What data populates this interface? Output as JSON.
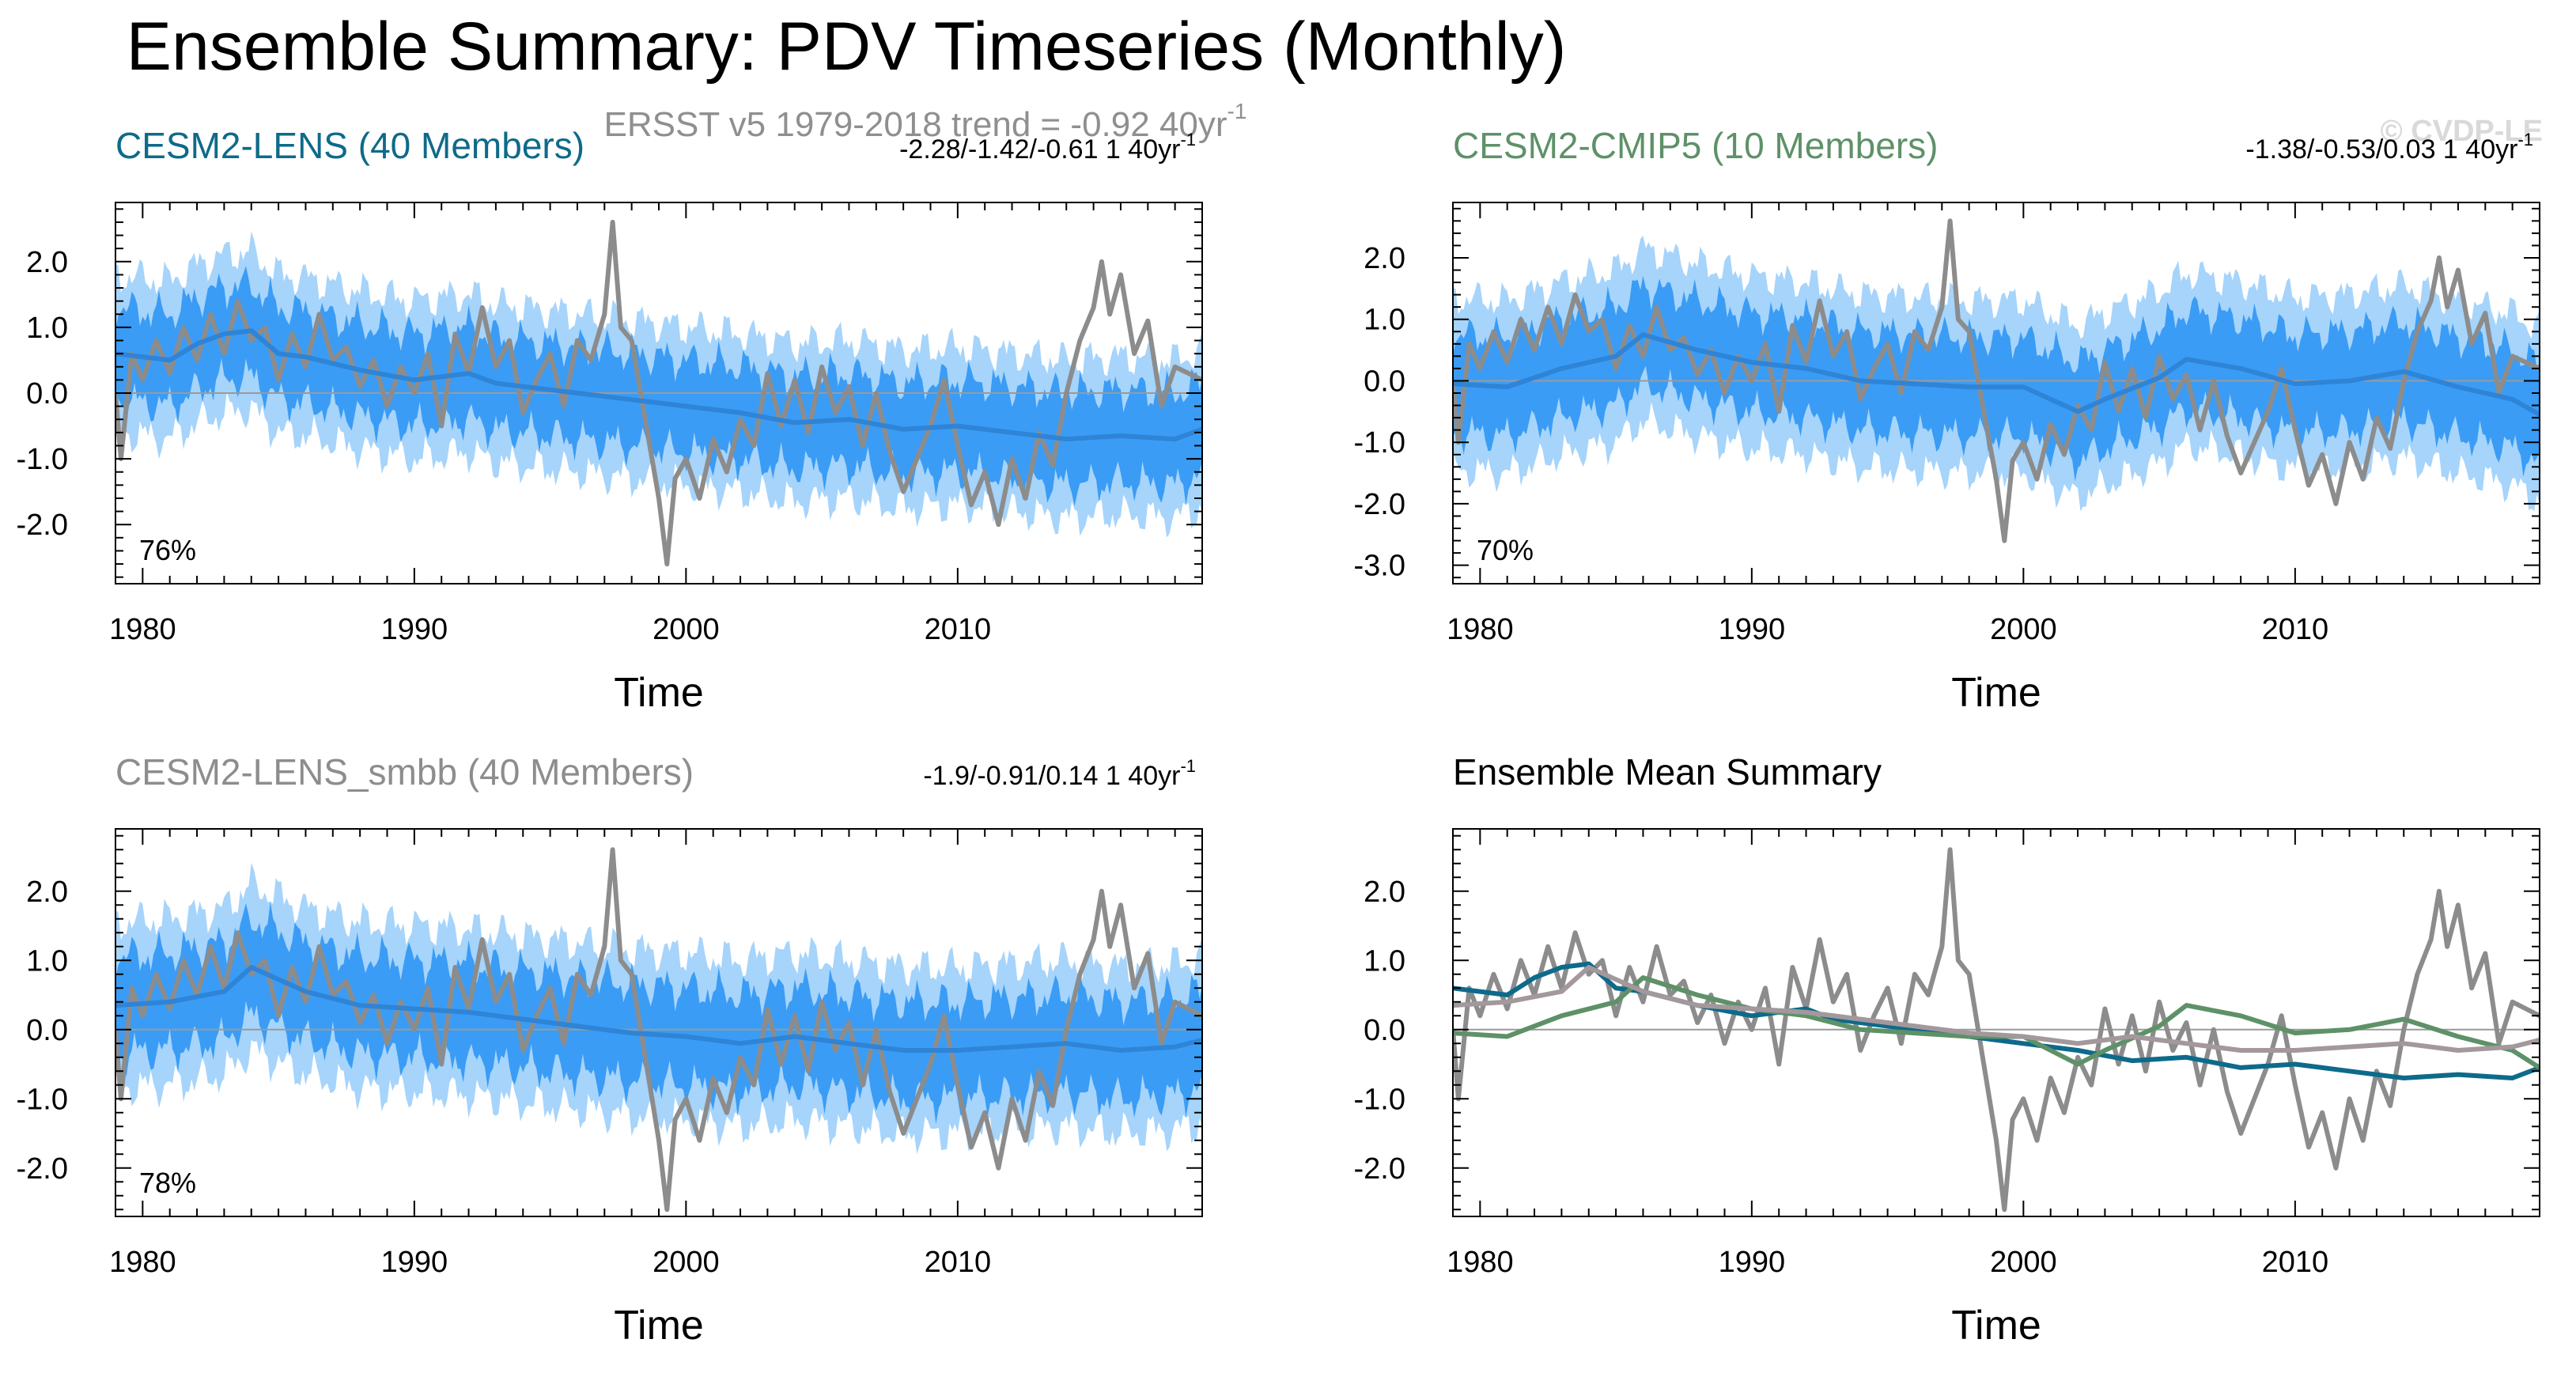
{
  "figure": {
    "title": "Ensemble Summary: PDV Timeseries (Monthly)",
    "subtitle_text": "ERSST v5 1979-2018 trend = -0.92 40yr",
    "subtitle_sup": "-1",
    "watermark": "© CVDP-LE",
    "colors": {
      "obs": "#8c8c8c",
      "inner_band": "#3a9cf5",
      "outer_band": "#a6d4fb",
      "ens_mean": "#2e84d6",
      "zero_line": "#9a9a9a",
      "lens": "#0e6a8a",
      "cmip5": "#5e9168",
      "smbb": "#a3989c"
    }
  },
  "chart_data": [
    {
      "id": "lens",
      "type": "line",
      "title": "CESM2-LENS (40 Members)",
      "title_color": "#0e6a8a",
      "trend_text": "-2.28/-1.42/-0.61 1 40yr",
      "trend_sup": "-1",
      "annotation": "76%",
      "xlabel": "Time",
      "ylabel": "",
      "xlim": [
        1979,
        2019
      ],
      "ylim": [
        -2.9,
        2.9
      ],
      "xticks": [
        1980,
        1990,
        2000,
        2010
      ],
      "xtick_labels": [
        "1980",
        "1990",
        "2000",
        "2010"
      ],
      "yticks": [
        2.0,
        1.0,
        0.0,
        -1.0,
        -2.0
      ],
      "ytick_labels": [
        "2.0",
        "1.0",
        "0.0",
        "-1.0",
        "-2.0"
      ],
      "ens_mean": {
        "x": [
          1979,
          1981,
          1982,
          1983,
          1984,
          1985,
          1986,
          1987,
          1988,
          1990,
          1992,
          1993,
          1995,
          1996,
          1998,
          2000,
          2002,
          2004,
          2006,
          2008,
          2010,
          2012,
          2014,
          2016,
          2018,
          2019
        ],
        "y": [
          0.6,
          0.5,
          0.75,
          0.9,
          0.95,
          0.6,
          0.55,
          0.45,
          0.35,
          0.2,
          0.3,
          0.15,
          0.05,
          0.0,
          -0.1,
          -0.2,
          -0.3,
          -0.45,
          -0.4,
          -0.55,
          -0.5,
          -0.6,
          -0.7,
          -0.65,
          -0.7,
          -0.55
        ]
      },
      "inner_spread": 0.7,
      "outer_spread": 1.2
    },
    {
      "id": "cmip5",
      "type": "line",
      "title": "CESM2-CMIP5 (10 Members)",
      "title_color": "#5e9168",
      "trend_text": "-1.38/-0.53/0.03 1 40yr",
      "trend_sup": "-1",
      "annotation": "70%",
      "xlabel": "Time",
      "ylabel": "",
      "xlim": [
        1979,
        2019
      ],
      "ylim": [
        -3.3,
        2.9
      ],
      "xticks": [
        1980,
        1990,
        2000,
        2010
      ],
      "xtick_labels": [
        "1980",
        "1990",
        "2000",
        "2010"
      ],
      "yticks": [
        2.0,
        1.0,
        0.0,
        -1.0,
        -2.0,
        -3.0
      ],
      "ytick_labels": [
        "2.0",
        "1.0",
        "0.0",
        "-1.0",
        "-2.0",
        "-3.0"
      ],
      "ens_mean": {
        "x": [
          1979,
          1981,
          1983,
          1985,
          1986,
          1988,
          1990,
          1992,
          1994,
          1996,
          1998,
          2000,
          2002,
          2003,
          2005,
          2006,
          2008,
          2010,
          2012,
          2014,
          2016,
          2018,
          2019
        ],
        "y": [
          -0.05,
          -0.1,
          0.2,
          0.4,
          0.75,
          0.5,
          0.3,
          0.2,
          0.0,
          -0.05,
          -0.1,
          -0.1,
          -0.5,
          -0.3,
          0.05,
          0.35,
          0.2,
          -0.05,
          0.0,
          0.15,
          -0.1,
          -0.3,
          -0.55
        ]
      },
      "inner_spread": 0.8,
      "outer_spread": 1.4
    },
    {
      "id": "smbb",
      "type": "line",
      "title": "CESM2-LENS_smbb (40 Members)",
      "title_color": "#8d8d8d",
      "trend_text": "-1.9/-0.91/0.14 1 40yr",
      "trend_sup": "-1",
      "annotation": "78%",
      "xlabel": "Time",
      "ylabel": "",
      "xlim": [
        1979,
        2019
      ],
      "ylim": [
        -2.7,
        2.9
      ],
      "xticks": [
        1980,
        1990,
        2000,
        2010
      ],
      "xtick_labels": [
        "1980",
        "1990",
        "2000",
        "2010"
      ],
      "yticks": [
        2.0,
        1.0,
        0.0,
        -1.0,
        -2.0
      ],
      "ytick_labels": [
        "2.0",
        "1.0",
        "0.0",
        "-1.0",
        "-2.0"
      ],
      "ens_mean": {
        "x": [
          1979,
          1981,
          1983,
          1984,
          1986,
          1988,
          1990,
          1992,
          1994,
          1996,
          1998,
          2000,
          2002,
          2004,
          2006,
          2008,
          2010,
          2012,
          2014,
          2016,
          2018,
          2019
        ],
        "y": [
          0.35,
          0.4,
          0.55,
          0.9,
          0.55,
          0.35,
          0.3,
          0.25,
          0.15,
          0.05,
          -0.05,
          -0.1,
          -0.2,
          -0.1,
          -0.2,
          -0.3,
          -0.3,
          -0.25,
          -0.2,
          -0.3,
          -0.25,
          -0.15
        ]
      },
      "inner_spread": 0.7,
      "outer_spread": 1.2
    },
    {
      "id": "summary",
      "type": "line",
      "title": "Ensemble Mean Summary",
      "title_color": "#000000",
      "trend_text": "",
      "trend_sup": "",
      "annotation": "",
      "xlabel": "Time",
      "ylabel": "",
      "xlim": [
        1979,
        2019
      ],
      "ylim": [
        -2.7,
        2.9
      ],
      "xticks": [
        1980,
        1990,
        2000,
        2010
      ],
      "xtick_labels": [
        "1980",
        "1990",
        "2000",
        "2010"
      ],
      "yticks": [
        2.0,
        1.0,
        0.0,
        -1.0,
        -2.0
      ],
      "ytick_labels": [
        "2.0",
        "1.0",
        "0.0",
        "-1.0",
        "-2.0"
      ],
      "series": [
        {
          "name": "CESM2-LENS",
          "ref": "lens",
          "color": "#0e6a8a"
        },
        {
          "name": "CESM2-CMIP5",
          "ref": "cmip5",
          "color": "#5e9168"
        },
        {
          "name": "CESM2-LENS_smbb",
          "ref": "smbb",
          "color": "#a3989c"
        }
      ]
    }
  ],
  "observations": {
    "name": "ERSST v5",
    "x": [
      1979,
      1979.2,
      1979.6,
      1980,
      1980.5,
      1981,
      1981.5,
      1982,
      1982.5,
      1983,
      1983.5,
      1984,
      1984.5,
      1985,
      1985.5,
      1986,
      1986.5,
      1987,
      1987.5,
      1988,
      1988.5,
      1989,
      1989.5,
      1990,
      1990.5,
      1991,
      1991.5,
      1992,
      1992.5,
      1993,
      1993.5,
      1994,
      1994.5,
      1995,
      1995.5,
      1996,
      1996.5,
      1997,
      1997.3,
      1997.6,
      1998,
      1998.5,
      1999,
      1999.3,
      1999.6,
      2000,
      2000.5,
      2001,
      2001.5,
      2002,
      2002.5,
      2003,
      2003.5,
      2004,
      2004.5,
      2005,
      2005.5,
      2006,
      2006.5,
      2007,
      2007.5,
      2008,
      2008.5,
      2009,
      2009.5,
      2010,
      2010.5,
      2011,
      2011.5,
      2012,
      2012.5,
      2013,
      2013.5,
      2014,
      2014.5,
      2015,
      2015.3,
      2015.6,
      2016,
      2016.5,
      2017,
      2017.5,
      2018,
      2018.5,
      2019
    ],
    "y": [
      0.0,
      -1.0,
      0.6,
      0.2,
      0.8,
      0.3,
      1.0,
      0.5,
      1.2,
      0.6,
      1.4,
      0.8,
      1.0,
      0.2,
      0.9,
      0.4,
      1.2,
      0.5,
      0.7,
      0.1,
      0.5,
      -0.2,
      0.4,
      0.0,
      0.6,
      -0.5,
      0.9,
      0.3,
      1.3,
      0.4,
      0.8,
      -0.3,
      0.2,
      0.6,
      -0.2,
      0.8,
      0.5,
      1.2,
      2.6,
      1.0,
      0.8,
      -0.4,
      -1.6,
      -2.6,
      -1.3,
      -1.0,
      -1.6,
      -0.7,
      -1.2,
      -0.4,
      -0.8,
      0.3,
      -0.5,
      0.2,
      -0.6,
      0.4,
      -0.3,
      0.1,
      -0.8,
      0.0,
      -0.9,
      -1.5,
      -1.0,
      -0.5,
      0.2,
      -0.8,
      -1.7,
      -1.2,
      -2.0,
      -1.0,
      -1.6,
      -0.6,
      -1.1,
      0.0,
      0.8,
      1.3,
      2.0,
      1.2,
      1.8,
      0.6,
      1.1,
      -0.2,
      0.4,
      0.3,
      0.2
    ]
  }
}
